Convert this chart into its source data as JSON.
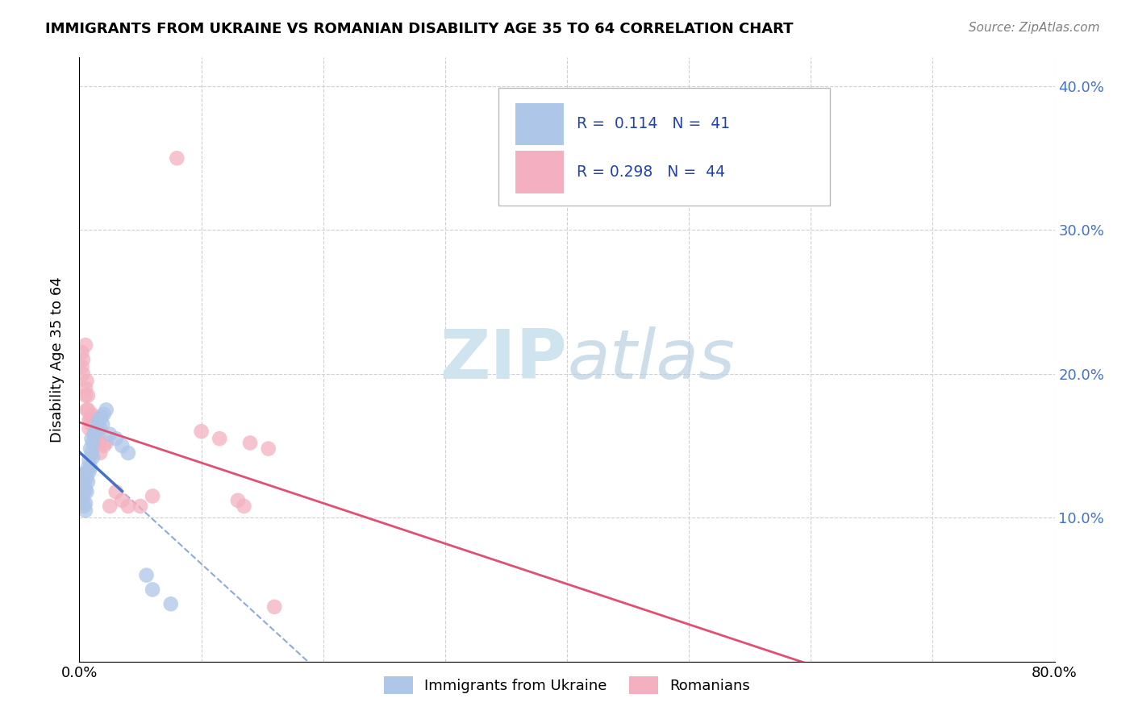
{
  "title": "IMMIGRANTS FROM UKRAINE VS ROMANIAN DISABILITY AGE 35 TO 64 CORRELATION CHART",
  "source": "Source: ZipAtlas.com",
  "ylabel": "Disability Age 35 to 64",
  "xlim": [
    0.0,
    0.8
  ],
  "ylim": [
    0.0,
    0.42
  ],
  "ukraine_R": 0.114,
  "ukraine_N": 41,
  "romanian_R": 0.298,
  "romanian_N": 44,
  "ukraine_color": "#aec6e8",
  "romanian_color": "#f4b0c0",
  "ukraine_line_color": "#4472c4",
  "romanian_line_color": "#e05070",
  "dashed_color_ukraine": "#7aaad0",
  "dashed_color_romanian": "#e07090",
  "watermark_color": "#d0e4f0",
  "ukraine_scatter": [
    [
      0.001,
      0.122
    ],
    [
      0.001,
      0.118
    ],
    [
      0.002,
      0.13
    ],
    [
      0.002,
      0.115
    ],
    [
      0.003,
      0.125
    ],
    [
      0.003,
      0.112
    ],
    [
      0.004,
      0.118
    ],
    [
      0.004,
      0.108
    ],
    [
      0.005,
      0.13
    ],
    [
      0.005,
      0.12
    ],
    [
      0.005,
      0.11
    ],
    [
      0.005,
      0.105
    ],
    [
      0.006,
      0.128
    ],
    [
      0.006,
      0.118
    ],
    [
      0.007,
      0.135
    ],
    [
      0.007,
      0.125
    ],
    [
      0.008,
      0.14
    ],
    [
      0.008,
      0.132
    ],
    [
      0.009,
      0.148
    ],
    [
      0.009,
      0.135
    ],
    [
      0.01,
      0.155
    ],
    [
      0.01,
      0.145
    ],
    [
      0.011,
      0.152
    ],
    [
      0.011,
      0.142
    ],
    [
      0.012,
      0.158
    ],
    [
      0.013,
      0.16
    ],
    [
      0.014,
      0.162
    ],
    [
      0.015,
      0.165
    ],
    [
      0.016,
      0.168
    ],
    [
      0.017,
      0.162
    ],
    [
      0.018,
      0.17
    ],
    [
      0.019,
      0.165
    ],
    [
      0.02,
      0.172
    ],
    [
      0.022,
      0.175
    ],
    [
      0.025,
      0.158
    ],
    [
      0.03,
      0.155
    ],
    [
      0.035,
      0.15
    ],
    [
      0.04,
      0.145
    ],
    [
      0.055,
      0.06
    ],
    [
      0.06,
      0.05
    ],
    [
      0.075,
      0.04
    ]
  ],
  "romanian_scatter": [
    [
      0.001,
      0.12
    ],
    [
      0.001,
      0.11
    ],
    [
      0.002,
      0.215
    ],
    [
      0.002,
      0.205
    ],
    [
      0.003,
      0.21
    ],
    [
      0.003,
      0.2
    ],
    [
      0.003,
      0.13
    ],
    [
      0.004,
      0.125
    ],
    [
      0.004,
      0.118
    ],
    [
      0.005,
      0.22
    ],
    [
      0.005,
      0.19
    ],
    [
      0.005,
      0.185
    ],
    [
      0.006,
      0.195
    ],
    [
      0.006,
      0.175
    ],
    [
      0.007,
      0.185
    ],
    [
      0.007,
      0.175
    ],
    [
      0.008,
      0.168
    ],
    [
      0.008,
      0.162
    ],
    [
      0.009,
      0.168
    ],
    [
      0.01,
      0.172
    ],
    [
      0.01,
      0.165
    ],
    [
      0.011,
      0.17
    ],
    [
      0.012,
      0.168
    ],
    [
      0.013,
      0.158
    ],
    [
      0.014,
      0.155
    ],
    [
      0.015,
      0.16
    ],
    [
      0.016,
      0.152
    ],
    [
      0.017,
      0.145
    ],
    [
      0.02,
      0.15
    ],
    [
      0.022,
      0.152
    ],
    [
      0.025,
      0.108
    ],
    [
      0.03,
      0.118
    ],
    [
      0.035,
      0.112
    ],
    [
      0.04,
      0.108
    ],
    [
      0.05,
      0.108
    ],
    [
      0.06,
      0.115
    ],
    [
      0.08,
      0.35
    ],
    [
      0.1,
      0.16
    ],
    [
      0.115,
      0.155
    ],
    [
      0.13,
      0.112
    ],
    [
      0.135,
      0.108
    ],
    [
      0.14,
      0.152
    ],
    [
      0.155,
      0.148
    ],
    [
      0.16,
      0.038
    ]
  ]
}
